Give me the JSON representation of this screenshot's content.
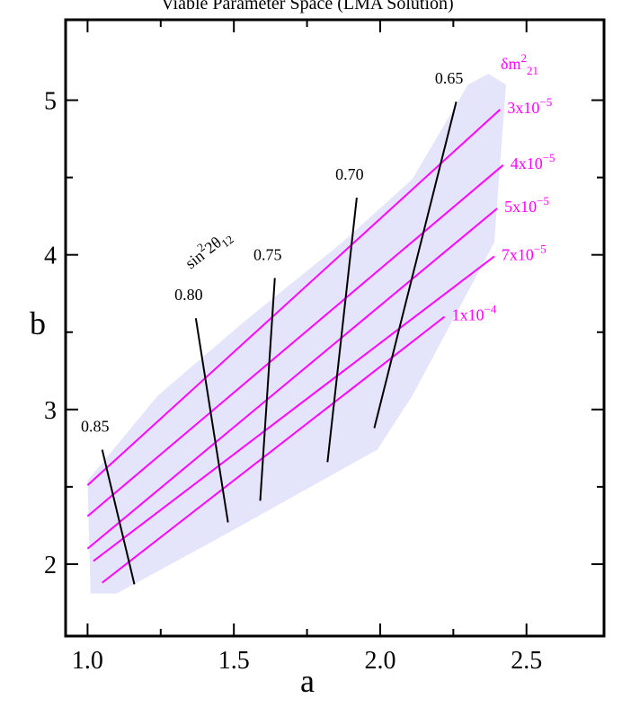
{
  "chart_data": {
    "type": "line",
    "title": "Viable Parameter Space (LMA Solution)",
    "x_label": "a",
    "y_label": "b",
    "xlim": [
      0.925,
      2.765
    ],
    "ylim": [
      1.535,
      5.52
    ],
    "xticks": [
      {
        "value": 1,
        "label": "1.0"
      },
      1.5,
      {
        "value": 2,
        "label": "2.0"
      },
      2.5
    ],
    "yticks": [
      2,
      3,
      4,
      5
    ],
    "xminor": [
      1.25,
      1.75,
      2.25
    ],
    "yminor": [
      2.5,
      3.5,
      4.5
    ],
    "region": {
      "color": "#e4e5fb",
      "x": [
        1.0,
        1.24,
        1.53,
        1.87,
        2.11,
        2.3,
        2.37,
        2.43,
        2.39,
        2.11,
        1.99,
        1.44,
        1.1,
        1.01
      ],
      "y": [
        2.54,
        3.09,
        3.56,
        4.08,
        4.49,
        5.1,
        5.17,
        5.1,
        4.08,
        3.09,
        2.74,
        2.16,
        1.81,
        1.81
      ]
    },
    "dm_label": {
      "base": "δm",
      "sup": "2",
      "sub": "21",
      "color": "#ff00ff"
    },
    "sin_label": {
      "base": "sin",
      "sup": "2",
      "mid": "2θ",
      "sub": "12"
    },
    "series": [
      {
        "name": "3x10",
        "exponent": "−5",
        "color": "#ff00ff",
        "x": [
          1.0,
          2.41
        ],
        "y": [
          2.51,
          4.94
        ]
      },
      {
        "name": "4x10",
        "exponent": "−5",
        "color": "#ff00ff",
        "x": [
          1.0,
          2.42
        ],
        "y": [
          2.31,
          4.58
        ]
      },
      {
        "name": "5x10",
        "exponent": "−5",
        "color": "#ff00ff",
        "x": [
          1.0,
          2.4
        ],
        "y": [
          2.1,
          4.3
        ]
      },
      {
        "name": "7x10",
        "exponent": "−5",
        "color": "#ff00ff",
        "x": [
          1.02,
          2.39
        ],
        "y": [
          2.02,
          3.99
        ]
      },
      {
        "name": "1x10",
        "exponent": "−4",
        "color": "#ff00ff",
        "x": [
          1.05,
          2.22
        ],
        "y": [
          1.88,
          3.6
        ]
      },
      {
        "name": "0.85",
        "color": "#000000",
        "x": [
          1.05,
          1.16
        ],
        "y": [
          2.74,
          1.87
        ]
      },
      {
        "name": "0.80",
        "color": "#000000",
        "x": [
          1.37,
          1.48
        ],
        "y": [
          3.59,
          2.27
        ]
      },
      {
        "name": "0.75",
        "color": "#000000",
        "x": [
          1.64,
          1.59
        ],
        "y": [
          3.85,
          2.41
        ]
      },
      {
        "name": "0.70",
        "color": "#000000",
        "x": [
          1.92,
          1.82
        ],
        "y": [
          4.37,
          2.66
        ]
      },
      {
        "name": "0.65",
        "color": "#000000",
        "x": [
          2.26,
          1.98
        ],
        "y": [
          4.99,
          2.88
        ]
      }
    ]
  }
}
